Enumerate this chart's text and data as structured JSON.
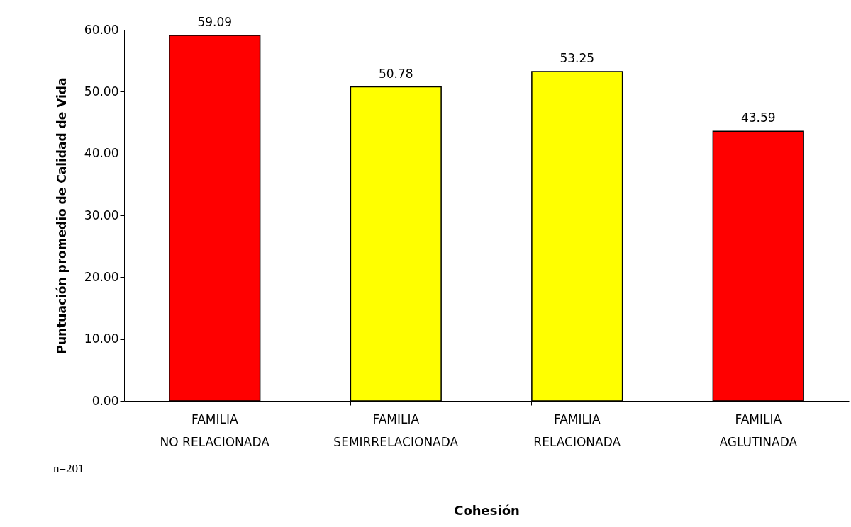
{
  "chart_data": {
    "type": "bar",
    "xlabel": "Cohesión",
    "ylabel": "Puntuación promedio de Calidad de Vida",
    "categories": [
      "FAMILIA NO RELACIONADA",
      "FAMILIA SEMIRRELACIONADA",
      "FAMILIA RELACIONADA",
      "FAMILIA AGLUTINADA"
    ],
    "values": [
      59.09,
      50.78,
      53.25,
      43.59
    ],
    "colors": [
      "#ff0000",
      "#ffff00",
      "#ffff00",
      "#ff0000"
    ],
    "ylim": [
      0,
      60
    ],
    "yticks": [
      {
        "value": 0,
        "label": "0.00"
      },
      {
        "value": 10,
        "label": "10.00"
      },
      {
        "value": 20,
        "label": "20.00"
      },
      {
        "value": 30,
        "label": "30.00"
      },
      {
        "value": 40,
        "label": "40.00"
      },
      {
        "value": 50,
        "label": "50.00"
      },
      {
        "value": 60,
        "label": "60.00"
      }
    ],
    "data_labels": true,
    "grid": false,
    "annotations": [
      "n=201"
    ]
  }
}
